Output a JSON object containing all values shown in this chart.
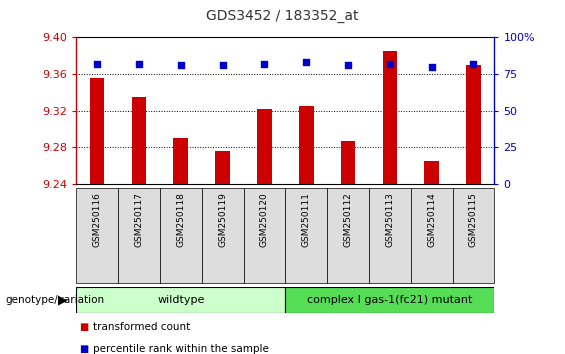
{
  "title": "GDS3452 / 183352_at",
  "samples": [
    "GSM250116",
    "GSM250117",
    "GSM250118",
    "GSM250119",
    "GSM250120",
    "GSM250111",
    "GSM250112",
    "GSM250113",
    "GSM250114",
    "GSM250115"
  ],
  "bar_values": [
    9.355,
    9.335,
    9.29,
    9.276,
    9.322,
    9.325,
    9.287,
    9.385,
    9.265,
    9.37
  ],
  "percentile_values": [
    82,
    82,
    81,
    81,
    82,
    83,
    81,
    82,
    80,
    82
  ],
  "bar_color": "#cc0000",
  "dot_color": "#0000cc",
  "ylim_left": [
    9.24,
    9.4
  ],
  "ylim_right": [
    0,
    100
  ],
  "yticks_left": [
    9.24,
    9.28,
    9.32,
    9.36,
    9.4
  ],
  "yticks_right": [
    0,
    25,
    50,
    75,
    100
  ],
  "grid_values": [
    9.28,
    9.32,
    9.36
  ],
  "wildtype_label": "wildtype",
  "mutant_label": "complex I gas-1(fc21) mutant",
  "wildtype_indices": [
    0,
    1,
    2,
    3,
    4
  ],
  "mutant_indices": [
    5,
    6,
    7,
    8,
    9
  ],
  "wildtype_color": "#ccffcc",
  "mutant_color": "#55dd55",
  "xtick_bg_color": "#dddddd",
  "group_label": "genotype/variation",
  "legend_bar": "transformed count",
  "legend_dot": "percentile rank within the sample",
  "title_color": "#333333",
  "left_axis_color": "#cc0000",
  "right_axis_color": "#0000cc",
  "bar_width": 0.5,
  "bar_bottom": 9.24
}
